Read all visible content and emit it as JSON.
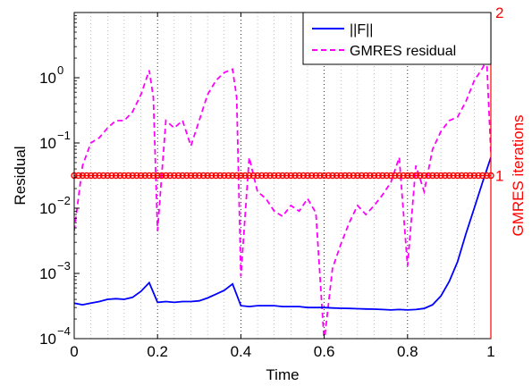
{
  "chart_data": {
    "type": "line",
    "xlabel": "Time",
    "ylabel": "Residual",
    "y2label": "GMRES iterations",
    "xlim": [
      0,
      1
    ],
    "ylim": [
      0.0001,
      10
    ],
    "yscale": "log",
    "y2lim": [
      0,
      2
    ],
    "grid": "x-dotted",
    "legend_position": "top-right",
    "x_ticks": [
      "0",
      "0.2",
      "0.4",
      "0.6",
      "0.8",
      "1"
    ],
    "y_ticks": [
      {
        "value": 0.0001,
        "base": "10",
        "exp": "−4"
      },
      {
        "value": 0.001,
        "base": "10",
        "exp": "−3"
      },
      {
        "value": 0.01,
        "base": "10",
        "exp": "−2"
      },
      {
        "value": 0.1,
        "base": "10",
        "exp": "−1"
      },
      {
        "value": 1,
        "base": "10",
        "exp": "0"
      }
    ],
    "y2_ticks": [
      "1",
      "2"
    ],
    "colors": {
      "norm_f": "#0000ff",
      "gmres_residual": "#ff00ff",
      "gmres_iterations": "#ff0000"
    },
    "series": [
      {
        "name": "||F||",
        "axis": "left",
        "style": "solid",
        "x": [
          0,
          0.02,
          0.04,
          0.06,
          0.08,
          0.1,
          0.12,
          0.14,
          0.16,
          0.18,
          0.2,
          0.22,
          0.24,
          0.26,
          0.28,
          0.3,
          0.32,
          0.34,
          0.36,
          0.38,
          0.4,
          0.42,
          0.44,
          0.46,
          0.48,
          0.5,
          0.52,
          0.54,
          0.56,
          0.58,
          0.6,
          0.62,
          0.64,
          0.66,
          0.68,
          0.7,
          0.72,
          0.74,
          0.76,
          0.78,
          0.8,
          0.82,
          0.84,
          0.86,
          0.88,
          0.9,
          0.92,
          0.94,
          0.96,
          0.98,
          1.0
        ],
        "y": [
          0.00035,
          0.00033,
          0.00035,
          0.00037,
          0.0004,
          0.00041,
          0.0004,
          0.00043,
          0.00053,
          0.00072,
          0.00036,
          0.00037,
          0.00036,
          0.00037,
          0.00037,
          0.00038,
          0.00042,
          0.00048,
          0.00055,
          0.00069,
          0.00032,
          0.00031,
          0.00032,
          0.00032,
          0.00032,
          0.00031,
          0.00031,
          0.00031,
          0.0003,
          0.0003,
          0.0003,
          0.000295,
          0.000292,
          0.00029,
          0.000288,
          0.000285,
          0.000283,
          0.00028,
          0.000275,
          0.00028,
          0.000275,
          0.00028,
          0.00029,
          0.00033,
          0.00045,
          0.00075,
          0.0015,
          0.004,
          0.01,
          0.025,
          0.06
        ]
      },
      {
        "name": "GMRES residual",
        "axis": "left",
        "style": "dashed",
        "x": [
          0,
          0.02,
          0.04,
          0.06,
          0.08,
          0.1,
          0.12,
          0.14,
          0.16,
          0.18,
          0.19,
          0.2,
          0.22,
          0.24,
          0.26,
          0.28,
          0.3,
          0.32,
          0.34,
          0.36,
          0.38,
          0.39,
          0.4,
          0.42,
          0.44,
          0.46,
          0.48,
          0.5,
          0.52,
          0.54,
          0.56,
          0.58,
          0.6,
          0.62,
          0.64,
          0.66,
          0.68,
          0.7,
          0.72,
          0.74,
          0.76,
          0.78,
          0.8,
          0.82,
          0.84,
          0.86,
          0.88,
          0.9,
          0.92,
          0.94,
          0.96,
          0.98,
          0.99,
          1.0
        ],
        "y": [
          0.0045,
          0.045,
          0.1,
          0.12,
          0.17,
          0.22,
          0.22,
          0.3,
          0.55,
          1.3,
          0.5,
          0.0045,
          0.22,
          0.17,
          0.22,
          0.09,
          0.22,
          0.55,
          0.9,
          1.2,
          1.35,
          0.5,
          0.0009,
          0.06,
          0.018,
          0.014,
          0.009,
          0.0075,
          0.011,
          0.009,
          0.014,
          0.0085,
          9e-05,
          0.0012,
          0.0028,
          0.006,
          0.011,
          0.008,
          0.011,
          0.016,
          0.025,
          0.06,
          0.0013,
          0.045,
          0.018,
          0.08,
          0.15,
          0.22,
          0.25,
          0.43,
          0.9,
          1.4,
          1.9,
          0.07
        ]
      },
      {
        "name": "GMRES iterations",
        "axis": "right",
        "style": "markers",
        "x": [
          0,
          0.01,
          0.02,
          0.03,
          0.04,
          0.05,
          0.06,
          0.07,
          0.08,
          0.09,
          0.1,
          0.11,
          0.12,
          0.13,
          0.14,
          0.15,
          0.16,
          0.17,
          0.18,
          0.19,
          0.2,
          0.21,
          0.22,
          0.23,
          0.24,
          0.25,
          0.26,
          0.27,
          0.28,
          0.29,
          0.3,
          0.31,
          0.32,
          0.33,
          0.34,
          0.35,
          0.36,
          0.37,
          0.38,
          0.39,
          0.4,
          0.41,
          0.42,
          0.43,
          0.44,
          0.45,
          0.46,
          0.47,
          0.48,
          0.49,
          0.5,
          0.51,
          0.52,
          0.53,
          0.54,
          0.55,
          0.56,
          0.57,
          0.58,
          0.59,
          0.6,
          0.61,
          0.62,
          0.63,
          0.64,
          0.65,
          0.66,
          0.67,
          0.68,
          0.69,
          0.7,
          0.71,
          0.72,
          0.73,
          0.74,
          0.75,
          0.76,
          0.77,
          0.78,
          0.79,
          0.8,
          0.81,
          0.82,
          0.83,
          0.84,
          0.85,
          0.86,
          0.87,
          0.88,
          0.89,
          0.9,
          0.91,
          0.92,
          0.93,
          0.94,
          0.95,
          0.96,
          0.97,
          0.98,
          0.99,
          1.0
        ],
        "y_constant": 1
      }
    ]
  }
}
